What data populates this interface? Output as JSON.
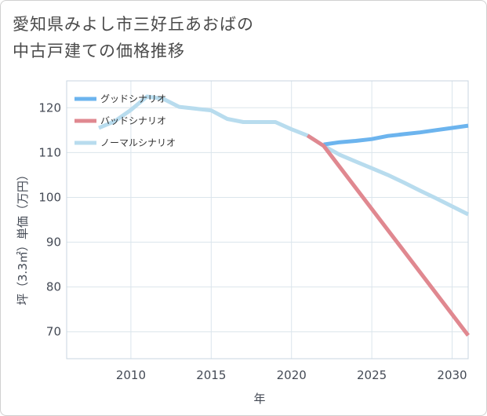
{
  "title_line1": "愛知県みよし市三好丘あおばの",
  "title_line2": "中古戸建ての価格推移",
  "chart_data": {
    "type": "line",
    "xlabel": "年",
    "ylabel": "坪（3.3㎡）単価（万円）",
    "xlim": [
      2006,
      2031
    ],
    "ylim": [
      64,
      126
    ],
    "x_ticks": [
      2010,
      2015,
      2020,
      2025,
      2030
    ],
    "y_ticks": [
      70,
      80,
      90,
      100,
      110,
      120
    ],
    "grid": true,
    "legend_position": "top-left",
    "series": [
      {
        "name": "グッドシナリオ",
        "color": "#6cb4ee",
        "x": [
          2022,
          2023,
          2024,
          2025,
          2026,
          2027,
          2028,
          2029,
          2030,
          2031
        ],
        "y": [
          111.8,
          112.3,
          112.6,
          113.0,
          113.7,
          114.1,
          114.5,
          115.0,
          115.5,
          116.0
        ]
      },
      {
        "name": "バッドシナリオ",
        "color": "#e08890",
        "x": [
          2021,
          2022,
          2031
        ],
        "y": [
          113.8,
          111.5,
          69.2
        ]
      },
      {
        "name": "ノーマルシナリオ",
        "color": "#b8dcee",
        "x": [
          2008,
          2009,
          2010,
          2011,
          2012,
          2013,
          2014,
          2015,
          2016,
          2017,
          2018,
          2019,
          2020,
          2021,
          2022,
          2023,
          2024,
          2025,
          2026,
          2027,
          2028,
          2029,
          2030,
          2031
        ],
        "y": [
          115.5,
          117.0,
          119.5,
          122.5,
          122.0,
          120.2,
          119.8,
          119.4,
          117.5,
          116.8,
          116.8,
          116.8,
          115.2,
          113.8,
          111.5,
          109.5,
          108.0,
          106.5,
          105.0,
          103.3,
          101.5,
          99.8,
          98.0,
          96.2
        ]
      }
    ]
  }
}
